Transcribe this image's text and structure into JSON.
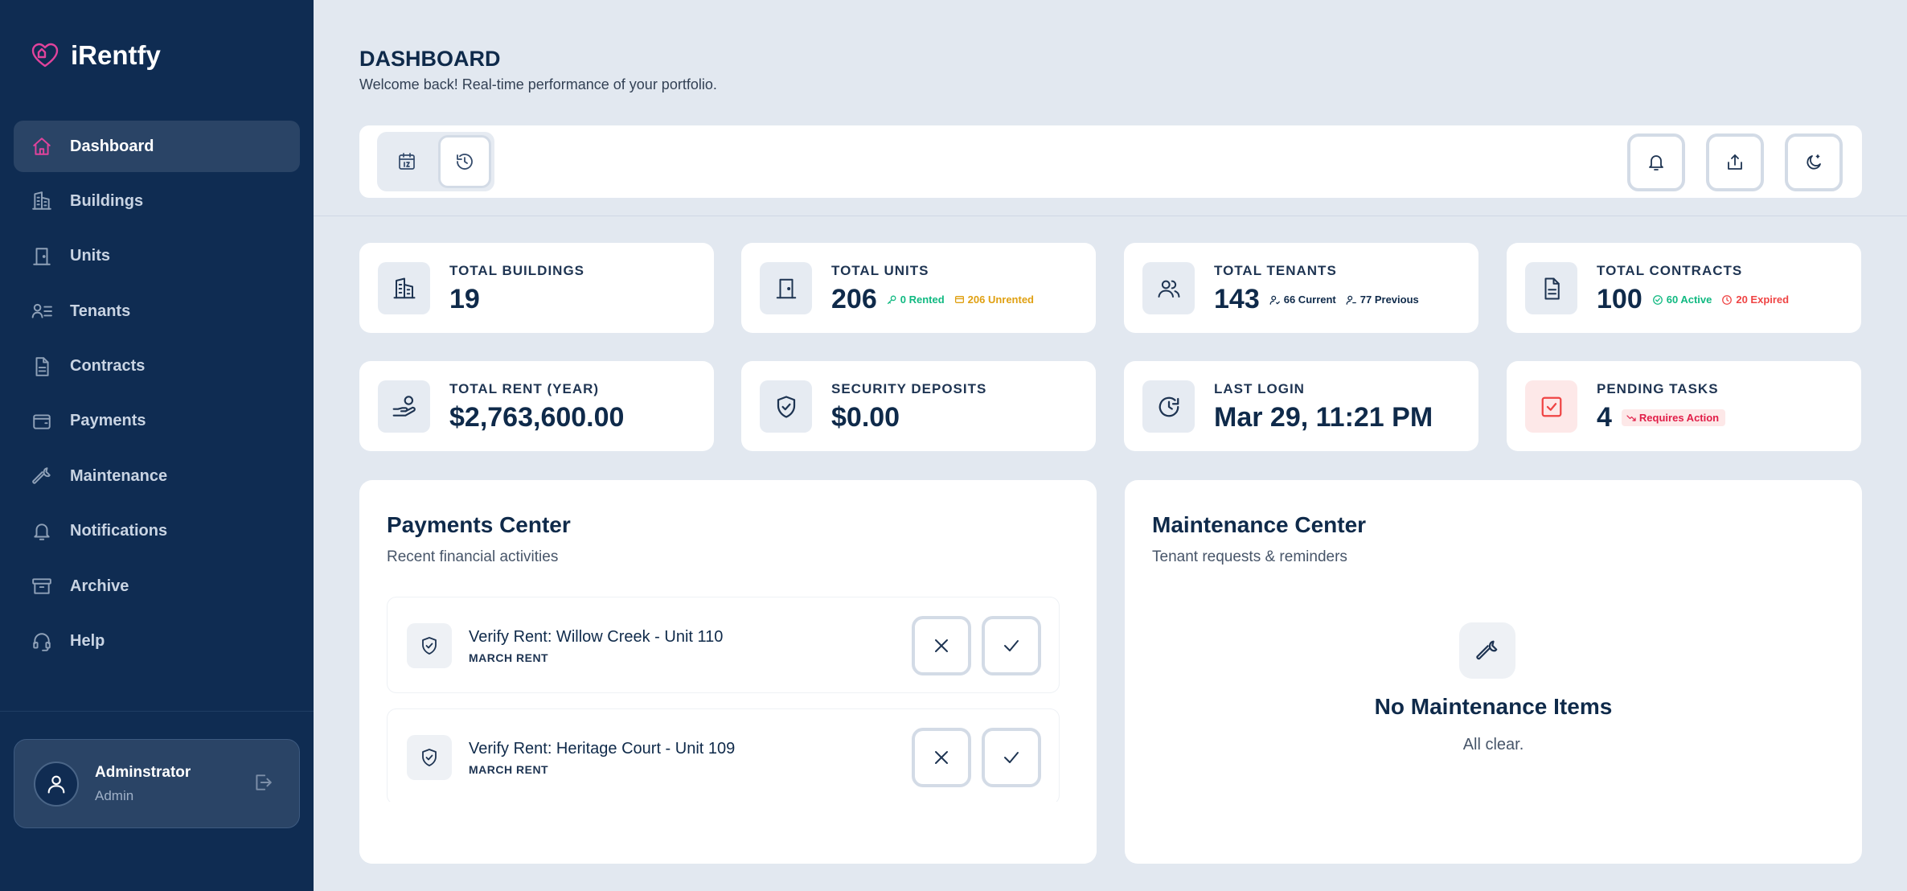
{
  "app": {
    "name": "iRentfy"
  },
  "sidebar": {
    "items": [
      {
        "label": "Dashboard",
        "icon": "home-icon",
        "active": true
      },
      {
        "label": "Buildings",
        "icon": "buildings-icon"
      },
      {
        "label": "Units",
        "icon": "door-icon"
      },
      {
        "label": "Tenants",
        "icon": "tenants-icon"
      },
      {
        "label": "Contracts",
        "icon": "document-icon"
      },
      {
        "label": "Payments",
        "icon": "wallet-icon"
      },
      {
        "label": "Maintenance",
        "icon": "wrench-icon"
      },
      {
        "label": "Notifications",
        "icon": "bell-icon"
      },
      {
        "label": "Archive",
        "icon": "archive-icon"
      },
      {
        "label": "Help",
        "icon": "headset-icon"
      }
    ],
    "user": {
      "name": "Adminstrator",
      "role": "Admin"
    }
  },
  "header": {
    "title": "DASHBOARD",
    "subtitle": "Welcome back! Real-time performance of your portfolio."
  },
  "stats": {
    "buildings": {
      "label": "TOTAL BUILDINGS",
      "value": "19"
    },
    "units": {
      "label": "TOTAL UNITS",
      "value": "206",
      "rented": "0 Rented",
      "unrented": "206 Unrented"
    },
    "tenants": {
      "label": "TOTAL TENANTS",
      "value": "143",
      "current": "66 Current",
      "previous": "77 Previous"
    },
    "contracts": {
      "label": "TOTAL CONTRACTS",
      "value": "100",
      "active": "60 Active",
      "expired": "20 Expired"
    },
    "rent": {
      "label": "TOTAL RENT (YEAR)",
      "value": "$2,763,600.00"
    },
    "deposits": {
      "label": "SECURITY DEPOSITS",
      "value": "$0.00"
    },
    "last_login": {
      "label": "LAST LOGIN",
      "value": "Mar 29, 11:21 PM"
    },
    "tasks": {
      "label": "PENDING TASKS",
      "value": "4",
      "badge": "Requires Action"
    }
  },
  "payments": {
    "title": "Payments Center",
    "subtitle": "Recent financial activities",
    "items": [
      {
        "title": "Verify Rent: Willow Creek - Unit 110",
        "sub": "MARCH RENT"
      },
      {
        "title": "Verify Rent: Heritage Court - Unit 109",
        "sub": "MARCH RENT"
      }
    ]
  },
  "maintenance": {
    "title": "Maintenance Center",
    "subtitle": "Tenant requests & reminders",
    "empty_title": "No Maintenance Items",
    "empty_sub": "All clear."
  },
  "colors": {
    "sidebar": "#0f2c52",
    "accent": "#e0439c",
    "background": "#e2e8f0",
    "green": "#10b981",
    "amber": "#e0a012",
    "red": "#ef4444"
  }
}
